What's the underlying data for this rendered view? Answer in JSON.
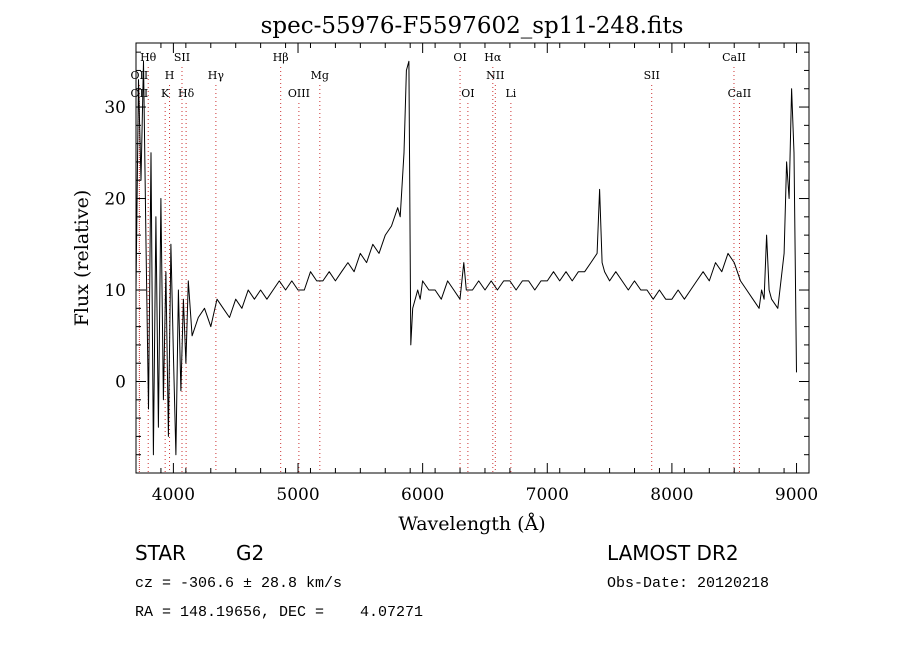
{
  "chart_data": {
    "type": "line",
    "title": "spec-55976-F5597602_sp11-248.fits",
    "xlabel": "Wavelength (Å)",
    "ylabel": "Flux (relative)",
    "xlim": [
      3700,
      9100
    ],
    "ylim": [
      -10,
      37
    ],
    "x_ticks": [
      4000,
      5000,
      6000,
      7000,
      8000,
      9000
    ],
    "y_ticks": [
      0,
      10,
      20,
      30
    ],
    "grid": false,
    "legend": "none",
    "line_color": "#000000",
    "marker_line_color": "#cc3333",
    "series": [
      {
        "x": [
          3700,
          3720,
          3740,
          3760,
          3780,
          3800,
          3820,
          3840,
          3860,
          3880,
          3900,
          3920,
          3940,
          3960,
          3980,
          4000,
          4020,
          4040,
          4060,
          4080,
          4100,
          4120,
          4150,
          4200,
          4250,
          4300,
          4350,
          4400,
          4450,
          4500,
          4550,
          4600,
          4650,
          4700,
          4750,
          4800,
          4850,
          4900,
          4950,
          5000,
          5050,
          5100,
          5150,
          5200,
          5250,
          5300,
          5350,
          5400,
          5450,
          5500,
          5550,
          5600,
          5650,
          5700,
          5750,
          5800,
          5820,
          5850,
          5870,
          5890,
          5905,
          5920,
          5940,
          5960,
          5980,
          6000,
          6050,
          6100,
          6150,
          6200,
          6250,
          6300,
          6330,
          6350,
          6400,
          6450,
          6500,
          6550,
          6600,
          6650,
          6700,
          6750,
          6800,
          6850,
          6900,
          6950,
          7000,
          7050,
          7100,
          7150,
          7200,
          7250,
          7300,
          7350,
          7400,
          7420,
          7440,
          7460,
          7500,
          7550,
          7600,
          7650,
          7700,
          7750,
          7800,
          7850,
          7900,
          7950,
          8000,
          8050,
          8100,
          8150,
          8200,
          8250,
          8300,
          8350,
          8400,
          8450,
          8500,
          8550,
          8600,
          8650,
          8700,
          8720,
          8740,
          8760,
          8780,
          8800,
          8850,
          8900,
          8920,
          8940,
          8960,
          8980,
          9000
        ],
        "y": [
          10,
          33,
          22,
          35,
          15,
          -3,
          25,
          -8,
          18,
          -5,
          20,
          -2,
          12,
          -6,
          15,
          3,
          -8,
          10,
          -1,
          9,
          2,
          11,
          5,
          7,
          8,
          6,
          9,
          8,
          7,
          9,
          8,
          10,
          9,
          10,
          9,
          10,
          11,
          10,
          11,
          10,
          10,
          12,
          11,
          11,
          12,
          11,
          12,
          13,
          12,
          14,
          13,
          15,
          14,
          16,
          17,
          19,
          18,
          25,
          34,
          35,
          4,
          8,
          9,
          10,
          9,
          11,
          10,
          10,
          9,
          11,
          10,
          9,
          13,
          10,
          10,
          11,
          10,
          11,
          10,
          11,
          11,
          10,
          11,
          11,
          10,
          11,
          11,
          12,
          11,
          12,
          11,
          12,
          12,
          13,
          14,
          21,
          13,
          12,
          11,
          12,
          11,
          10,
          11,
          10,
          10,
          9,
          10,
          9,
          9,
          10,
          9,
          10,
          11,
          12,
          11,
          13,
          12,
          14,
          13,
          11,
          10,
          9,
          8,
          10,
          9,
          16,
          10,
          9,
          8,
          14,
          24,
          20,
          32,
          25,
          1
        ]
      }
    ],
    "line_markers": [
      {
        "label": "Hθ",
        "x": 3798,
        "row": 1
      },
      {
        "label": "OII",
        "x": 3727,
        "row": 2
      },
      {
        "label": "OII",
        "x": 3727,
        "row": 3
      },
      {
        "label": "SII",
        "x": 4069,
        "row": 1
      },
      {
        "label": "H",
        "x": 3969,
        "row": 2
      },
      {
        "label": "K",
        "x": 3934,
        "row": 3
      },
      {
        "label": "Hδ",
        "x": 4102,
        "row": 3
      },
      {
        "label": "Hγ",
        "x": 4341,
        "row": 2
      },
      {
        "label": "Hβ",
        "x": 4861,
        "row": 1
      },
      {
        "label": "OIII",
        "x": 5007,
        "row": 3
      },
      {
        "label": "Mg",
        "x": 5175,
        "row": 2
      },
      {
        "label": "OI",
        "x": 6300,
        "row": 1
      },
      {
        "label": "OI",
        "x": 6363,
        "row": 3
      },
      {
        "label": "Hα",
        "x": 6563,
        "row": 1
      },
      {
        "label": "NII",
        "x": 6583,
        "row": 2
      },
      {
        "label": "Li",
        "x": 6708,
        "row": 3
      },
      {
        "label": "SII",
        "x": 7838,
        "row": 2
      },
      {
        "label": "CaII",
        "x": 8498,
        "row": 1
      },
      {
        "label": "CaII",
        "x": 8542,
        "row": 3
      }
    ]
  },
  "info": {
    "class_label": "STAR",
    "subclass": "G2",
    "survey": "LAMOST DR2",
    "cz": "cz = -306.6 ± 28.8 km/s",
    "obs_date": "Obs-Date: 20120218",
    "coords": "RA = 148.19656, DEC =    4.07271"
  }
}
